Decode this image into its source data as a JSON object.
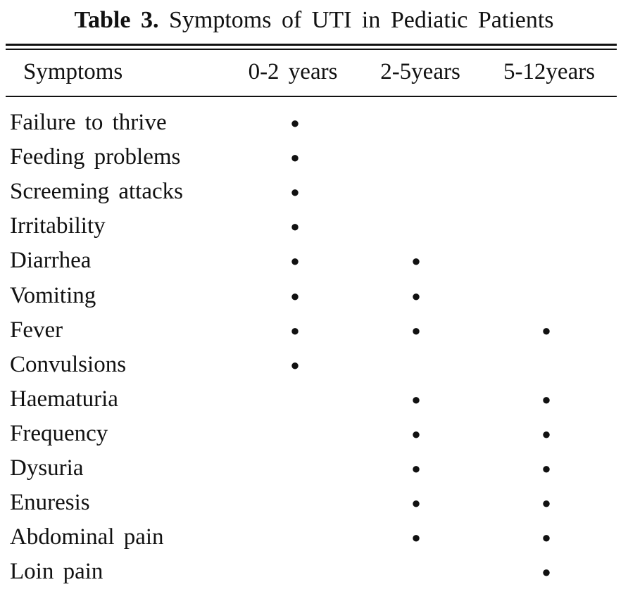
{
  "table": {
    "title": {
      "label": "Table 3.",
      "caption": "Symptoms of UTI in Pediatic Patients"
    },
    "header": [
      "Symptoms",
      "0-2 years",
      "2-5years",
      "5-12years"
    ],
    "rows": [
      [
        "Failure to thrive",
        "●",
        null,
        null
      ],
      [
        "Feeding problems",
        "●",
        null,
        null
      ],
      [
        "Screeming attacks",
        "●",
        null,
        null
      ],
      [
        "Irritability",
        "●",
        null,
        null
      ],
      [
        "Diarrhea",
        "●",
        "●",
        null
      ],
      [
        "Vomiting",
        "●",
        "●",
        null
      ],
      [
        "Fever",
        "●",
        "●",
        "●"
      ],
      [
        "Convulsions",
        "●",
        null,
        null
      ],
      [
        "Haematuria",
        null,
        "●",
        "●"
      ],
      [
        "Frequency",
        null,
        "●",
        "●"
      ],
      [
        "Dysuria",
        null,
        "●",
        "●"
      ],
      [
        "Enuresis",
        null,
        "●",
        "●"
      ],
      [
        "Abdominal pain",
        null,
        "●",
        "●"
      ],
      [
        "Loin pain",
        null,
        null,
        "●"
      ]
    ]
  }
}
